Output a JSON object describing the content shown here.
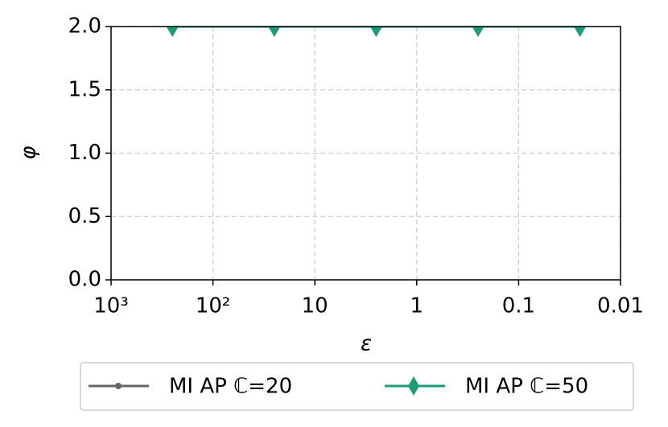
{
  "chart_data": {
    "type": "line",
    "xlabel": "ε",
    "ylabel": "φ",
    "x": [
      250,
      25,
      2.5,
      0.25,
      0.025
    ],
    "series": [
      {
        "name": "MI AP ℂ=20",
        "color": "#666666",
        "marker": "circle",
        "values": [
          2.0,
          2.0,
          2.0,
          2.0,
          2.0
        ]
      },
      {
        "name": "MI AP ℂ=50",
        "color": "#1b9e77",
        "marker": "thin-diamond",
        "values": [
          2.0,
          2.0,
          2.0,
          2.0,
          2.0
        ]
      }
    ],
    "xscale": "log",
    "xlim": [
      1000,
      0.01
    ],
    "xticks": [
      {
        "value": 1000,
        "label": "10³"
      },
      {
        "value": 100,
        "label": "10²"
      },
      10,
      1,
      0.1,
      0.01
    ],
    "ylim": [
      0,
      2
    ],
    "yticks": [
      {
        "value": 0,
        "label": "0.0"
      },
      {
        "value": 0.5,
        "label": "0.5"
      },
      {
        "value": 1,
        "label": "1.0"
      },
      {
        "value": 1.5,
        "label": "1.5"
      },
      {
        "value": 2,
        "label": "2.0"
      }
    ],
    "grid": true,
    "legend": "lower center"
  }
}
